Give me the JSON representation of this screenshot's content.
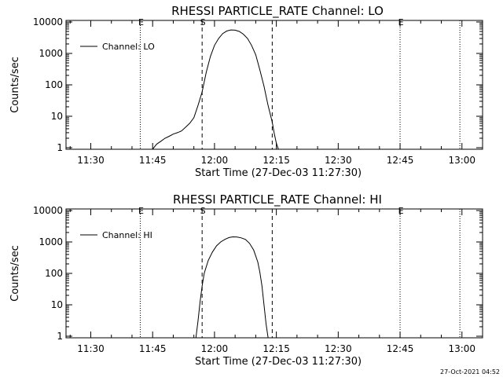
{
  "footer": {
    "timestamp": "27-Oct-2021 04:52"
  },
  "chart_data": [
    {
      "type": "line",
      "title": "RHESSI PARTICLE_RATE Channel: LO",
      "xlabel": "Start Time (27-Dec-03 11:27:30)",
      "ylabel": "Counts/sec",
      "y_scale": "log",
      "xlim_minutes": [
        -3.5,
        97.5
      ],
      "ylim": [
        1,
        10000
      ],
      "xtick_labels": [
        "11:30",
        "11:45",
        "12:00",
        "12:15",
        "12:30",
        "12:45",
        "13:00"
      ],
      "ytick_labels": [
        "1",
        "10",
        "100",
        "1000",
        "10000"
      ],
      "legend": {
        "position": "top-left",
        "label": "Channel: LO"
      },
      "vlines": [
        {
          "x": 14.5,
          "style": "dotted",
          "label": "E"
        },
        {
          "x": 29.5,
          "style": "dashed",
          "label": "S"
        },
        {
          "x": 46.5,
          "style": "dashed",
          "label": ""
        },
        {
          "x": 77.5,
          "style": "dotted",
          "label": "E"
        },
        {
          "x": 92.0,
          "style": "dotted",
          "label": ""
        }
      ],
      "series": [
        {
          "name": "Channel: LO",
          "x": [
            17.5,
            18.5,
            19.5,
            20.5,
            21.5,
            22.5,
            23.5,
            24.5,
            25.5,
            26.5,
            27.5,
            28.5,
            29.5,
            30.5,
            31.5,
            32.5,
            33.5,
            34.5,
            35.5,
            36.5,
            37.5,
            38.5,
            39.5,
            40.5,
            41.5,
            42.5,
            43.5,
            44.5,
            45.5,
            46.5,
            47.0,
            47.5,
            48.0
          ],
          "y": [
            0.9,
            1.3,
            1.6,
            2.0,
            2.3,
            2.7,
            3.0,
            3.4,
            4.5,
            6.0,
            9,
            22,
            60,
            250,
            800,
            1800,
            3000,
            4300,
            5200,
            5600,
            5500,
            5000,
            4100,
            3000,
            1800,
            900,
            300,
            90,
            22,
            6.5,
            2.8,
            1.4,
            0.9
          ]
        }
      ]
    },
    {
      "type": "line",
      "title": "RHESSI PARTICLE_RATE Channel: HI",
      "xlabel": "Start Time (27-Dec-03 11:27:30)",
      "ylabel": "Counts/sec",
      "y_scale": "log",
      "xlim_minutes": [
        -3.5,
        97.5
      ],
      "ylim": [
        1,
        10000
      ],
      "xtick_labels": [
        "11:30",
        "11:45",
        "12:00",
        "12:15",
        "12:30",
        "12:45",
        "13:00"
      ],
      "ytick_labels": [
        "1",
        "10",
        "100",
        "1000",
        "10000"
      ],
      "legend": {
        "position": "top-left",
        "label": "Channel: HI"
      },
      "vlines": [
        {
          "x": 14.5,
          "style": "dotted",
          "label": "E"
        },
        {
          "x": 29.5,
          "style": "dashed",
          "label": "S"
        },
        {
          "x": 46.5,
          "style": "dashed",
          "label": ""
        },
        {
          "x": 77.5,
          "style": "dotted",
          "label": "E"
        },
        {
          "x": 92.0,
          "style": "dotted",
          "label": ""
        }
      ],
      "series": [
        {
          "name": "Channel: HI",
          "x": [
            28.0,
            28.5,
            29.0,
            29.5,
            30.0,
            31.0,
            32.0,
            33.0,
            34.0,
            35.0,
            36.0,
            37.0,
            38.0,
            39.0,
            40.0,
            41.0,
            42.0,
            43.0,
            43.5,
            44.0,
            44.5,
            45.0,
            45.5
          ],
          "y": [
            0.9,
            3,
            12,
            40,
            100,
            260,
            480,
            750,
            1000,
            1200,
            1380,
            1450,
            1440,
            1350,
            1200,
            900,
            550,
            230,
            110,
            40,
            10,
            2.5,
            0.9
          ]
        }
      ]
    }
  ]
}
